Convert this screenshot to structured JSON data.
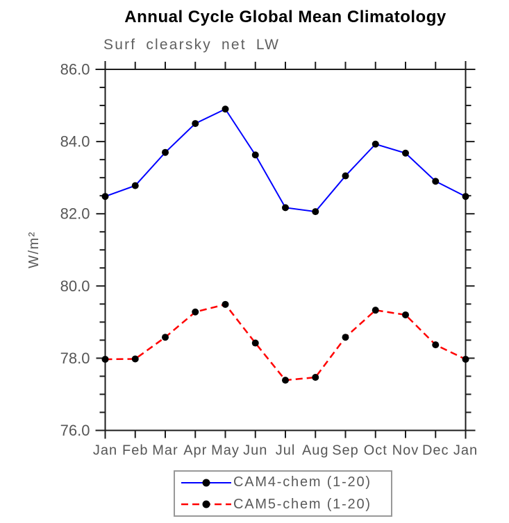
{
  "header": {
    "title": "Annual Cycle Global Mean Climatology",
    "subtitle": "Surf clearsky net LW"
  },
  "chart_data": {
    "type": "line",
    "title": "Annual Cycle Global Mean Climatology",
    "subtitle": "Surf clearsky net LW",
    "ylabel": "W/m²",
    "xlabel": "",
    "categories": [
      "Jan",
      "Feb",
      "Mar",
      "Apr",
      "May",
      "Jun",
      "Jul",
      "Aug",
      "Sep",
      "Oct",
      "Nov",
      "Dec",
      "Jan"
    ],
    "ylim": [
      76.0,
      86.0
    ],
    "y_major_ticks": [
      76.0,
      78.0,
      80.0,
      82.0,
      84.0,
      86.0
    ],
    "y_minor_step": 0.5,
    "grid": false,
    "legend_position": "bottom",
    "series": [
      {
        "name": "CAM4-chem (1-20)",
        "color": "#0000ff",
        "line_style": "solid",
        "line_width": 2,
        "marker": "filled-circle",
        "marker_color": "#000000",
        "values": [
          82.48,
          82.78,
          83.7,
          84.5,
          84.9,
          83.63,
          82.17,
          82.06,
          83.05,
          83.93,
          83.68,
          82.9,
          82.48
        ]
      },
      {
        "name": "CAM5-chem (1-20)",
        "color": "#ff0000",
        "line_style": "dashed",
        "line_width": 2.5,
        "marker": "filled-circle",
        "marker_color": "#000000",
        "values": [
          77.97,
          77.98,
          78.58,
          79.28,
          79.49,
          78.42,
          77.39,
          77.47,
          78.58,
          79.33,
          79.2,
          78.37,
          77.97
        ]
      }
    ]
  },
  "colors": {
    "axis": "#1c1c1c",
    "tick_label": "#565656",
    "title": "#000000",
    "subtitle": "#5f5f5f",
    "legend_border": "#989898",
    "legend_text": "#5a5a5a",
    "background": "#ffffff"
  }
}
